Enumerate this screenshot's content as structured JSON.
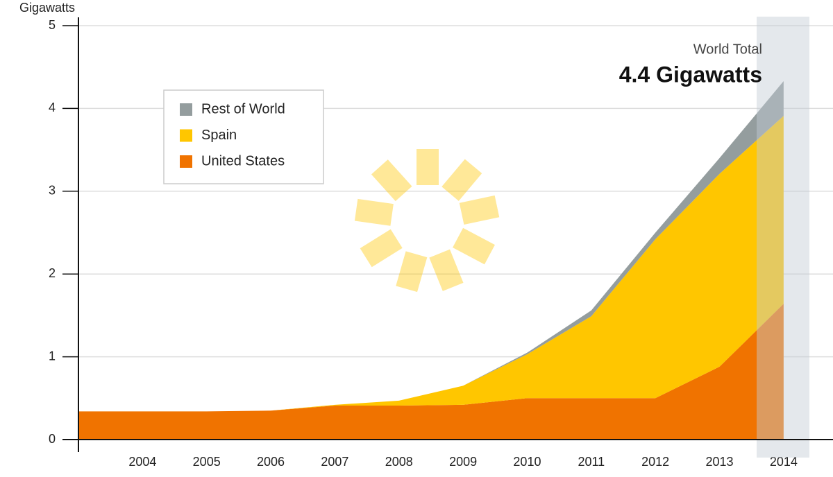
{
  "chart_data": {
    "type": "stacked_area",
    "y_label": "Gigawatts",
    "annotation": {
      "title": "World Total",
      "value_text": "4.4 Gigawatts"
    },
    "categories": [
      null,
      "2004",
      "2005",
      "2006",
      "2007",
      "2008",
      "2009",
      "2010",
      "2011",
      "2012",
      "2013",
      "2014"
    ],
    "series": [
      {
        "name": "United States",
        "color": "#f07300",
        "values": [
          0.34,
          0.34,
          0.34,
          0.35,
          0.41,
          0.41,
          0.42,
          0.5,
          0.5,
          0.5,
          0.88,
          1.64
        ]
      },
      {
        "name": "Spain",
        "color": "#ffc600",
        "values": [
          0,
          0,
          0,
          0,
          0.01,
          0.06,
          0.23,
          0.53,
          0.99,
          1.92,
          2.33,
          2.27
        ]
      },
      {
        "name": "Rest of World",
        "color": "#949d9e",
        "values": [
          0,
          0,
          0,
          0,
          0,
          0,
          0,
          0.02,
          0.07,
          0.08,
          0.19,
          0.42
        ]
      }
    ],
    "ylim": [
      0,
      5
    ],
    "yticks": [
      0,
      1,
      2,
      3,
      4,
      5
    ],
    "grid": true
  }
}
